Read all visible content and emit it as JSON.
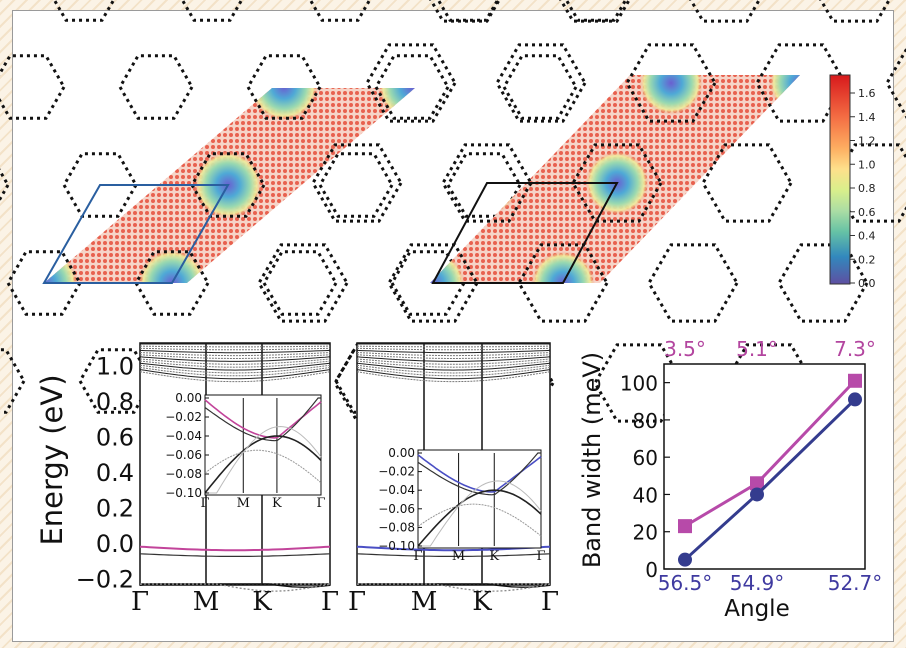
{
  "colorbar": {
    "ticks": [
      "1.6",
      "1.4",
      "1.2",
      "1.0",
      "0.8",
      "0.6",
      "0.4",
      "0.2",
      "0.0"
    ],
    "colors": [
      "#d7191c",
      "#f46d43",
      "#fdae61",
      "#fee08b",
      "#ffffbf",
      "#abdda4",
      "#66c2a5",
      "#3288bd",
      "#5e4fa2"
    ]
  },
  "band_plots": {
    "ylabel": "Energy (eV)",
    "yticks": [
      "1.0",
      "0.8",
      "0.6",
      "0.4",
      "0.2",
      "0.0",
      "−0.2"
    ],
    "kpoints": [
      "Γ",
      "M",
      "K",
      "Γ"
    ],
    "inset": {
      "yticks": [
        "0.00",
        "−0.02",
        "−0.04",
        "−0.06",
        "−0.08",
        "−0.10"
      ],
      "kpoints": [
        "Γ",
        "M",
        "K",
        "Γ"
      ]
    },
    "left_flat_band_color": "#c2449a",
    "right_flat_band_color": "#4a4fc4"
  },
  "chart_data": {
    "type": "line",
    "xlabel": "Angle",
    "ylabel": "Band width (meV)",
    "ylim": [
      0,
      110
    ],
    "yticks": [
      "0",
      "20",
      "40",
      "60",
      "80",
      "100"
    ],
    "x_bottom_labels": [
      "56.5°",
      "54.9°",
      "52.7°"
    ],
    "x_top_labels": [
      "3.5°",
      "5.1°",
      "7.3°"
    ],
    "series": [
      {
        "marker": "square",
        "color": "#b74aa9",
        "values": [
          23,
          46,
          101
        ]
      },
      {
        "marker": "circle",
        "color": "#343c8e",
        "values": [
          5,
          40,
          91
        ]
      }
    ]
  }
}
